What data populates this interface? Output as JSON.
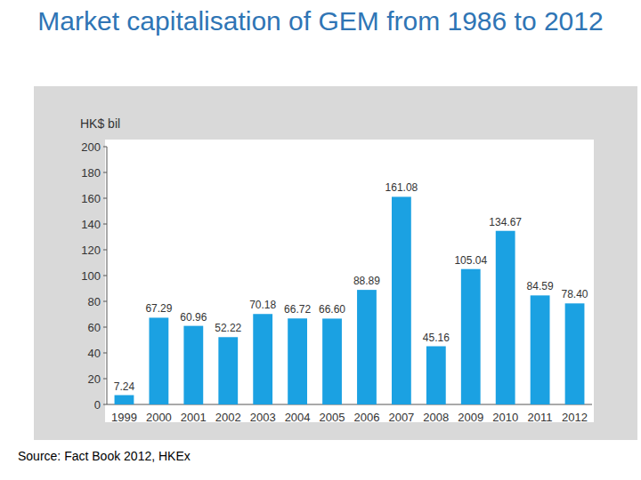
{
  "chart_data": {
    "type": "bar",
    "title": "Market capitalisation of GEM from 1986 to 2012",
    "y_label": "HK$ bil",
    "source": "Source: Fact Book 2012, HKEx",
    "categories": [
      "1999",
      "2000",
      "2001",
      "2002",
      "2003",
      "2004",
      "2005",
      "2006",
      "2007",
      "2008",
      "2009",
      "2010",
      "2011",
      "2012"
    ],
    "values": [
      7.24,
      67.29,
      60.96,
      52.22,
      70.18,
      66.72,
      66.6,
      88.89,
      161.08,
      45.16,
      105.04,
      134.67,
      84.59,
      78.4
    ],
    "value_labels": [
      "7.24",
      "67.29",
      "60.96",
      "52.22",
      "70.18",
      "66.72",
      "66.60",
      "88.89",
      "161.08",
      "45.16",
      "105.04",
      "134.67",
      "84.59",
      "78.40"
    ],
    "color": "#1ba1e2",
    "ylim": [
      0,
      200
    ],
    "yticks": [
      0,
      20,
      40,
      60,
      80,
      100,
      120,
      140,
      160,
      180,
      200
    ],
    "grid": false,
    "data_labels": true
  }
}
